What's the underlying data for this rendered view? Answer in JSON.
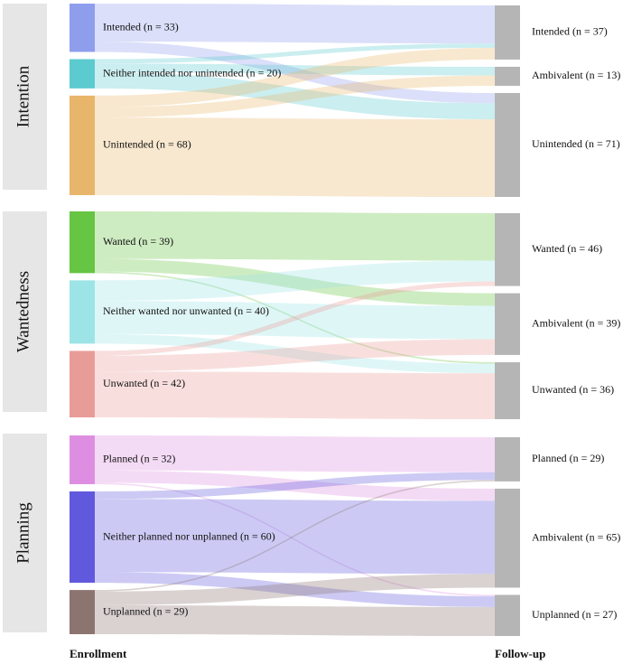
{
  "chart_data": {
    "type": "sankey",
    "left_axis_label": "Enrollment",
    "right_axis_label": "Follow-up",
    "panels": [
      {
        "title": "Intention",
        "left": [
          {
            "label": "Intended (n = 33)",
            "n": 33,
            "color": "#8f9ded"
          },
          {
            "label": "Neither intended nor unintended (n = 20)",
            "n": 20,
            "color": "#5ccbcf"
          },
          {
            "label": "Unintended (n = 68)",
            "n": 68,
            "color": "#e8b66a"
          }
        ],
        "right": [
          {
            "label": "Intended (n = 37)",
            "n": 37
          },
          {
            "label": "Ambivalent (n = 13)",
            "n": 13
          },
          {
            "label": "Unintended (n = 71)",
            "n": 71
          }
        ],
        "flows": [
          [
            26,
            0,
            7
          ],
          [
            3,
            6,
            11
          ],
          [
            8,
            7,
            53
          ]
        ]
      },
      {
        "title": "Wantedness",
        "left": [
          {
            "label": "Wanted (n = 39)",
            "n": 39,
            "color": "#66c542"
          },
          {
            "label": "Neither wanted nor unwanted (n = 40)",
            "n": 40,
            "color": "#9de4e6"
          },
          {
            "label": "Unwanted (n = 42)",
            "n": 42,
            "color": "#e89c98"
          }
        ],
        "right": [
          {
            "label": "Wanted (n = 46)",
            "n": 46
          },
          {
            "label": "Ambivalent (n = 39)",
            "n": 39
          },
          {
            "label": "Unwanted (n = 36)",
            "n": 36
          }
        ],
        "flows": [
          [
            30,
            8,
            1
          ],
          [
            13,
            21,
            6
          ],
          [
            3,
            10,
            29
          ]
        ]
      },
      {
        "title": "Planning",
        "left": [
          {
            "label": "Planned (n = 32)",
            "n": 32,
            "color": "#de8ee0"
          },
          {
            "label": "Neither planned nor unplanned (n = 60)",
            "n": 60,
            "color": "#6159dd"
          },
          {
            "label": "Unplanned (n = 29)",
            "n": 29,
            "color": "#8c7471"
          }
        ],
        "right": [
          {
            "label": "Planned (n = 29)",
            "n": 29
          },
          {
            "label": "Ambivalent (n = 65)",
            "n": 65
          },
          {
            "label": "Unplanned (n = 27)",
            "n": 27
          }
        ],
        "flows": [
          [
            23,
            8,
            1
          ],
          [
            5,
            48,
            7
          ],
          [
            1,
            9,
            19
          ]
        ]
      }
    ]
  }
}
